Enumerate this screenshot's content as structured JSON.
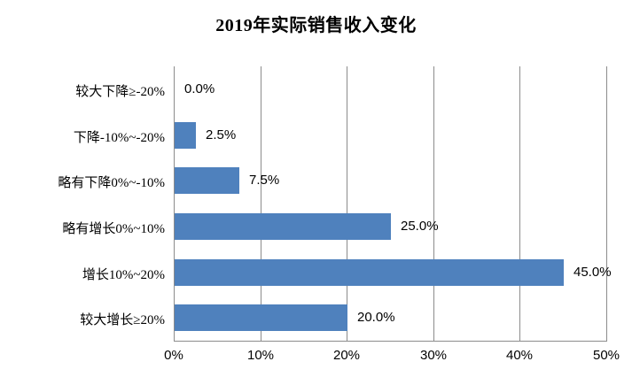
{
  "title": "2019年实际销售收入变化",
  "chart_data": {
    "type": "bar",
    "orientation": "horizontal",
    "title": "2019年实际销售收入变化",
    "categories": [
      "较大下降≥-20%",
      "下降-10%~-20%",
      "略有下降0%~-10%",
      "略有增长0%~10%",
      "增长10%~20%",
      "较大增长≥20%"
    ],
    "values": [
      0.0,
      2.5,
      7.5,
      25.0,
      45.0,
      20.0
    ],
    "data_labels": [
      "0.0%",
      "2.5%",
      "7.5%",
      "25.0%",
      "45.0%",
      "20.0%"
    ],
    "x_tick_labels": [
      "0%",
      "10%",
      "20%",
      "30%",
      "40%",
      "50%"
    ],
    "x_tick_values": [
      0,
      10,
      20,
      30,
      40,
      50
    ],
    "xlim": [
      0,
      50
    ],
    "xlabel": "",
    "ylabel": "",
    "grid": "vertical",
    "legend": false,
    "bar_color": "#4F81BD",
    "gridline_color": "#8C8C8C",
    "axis_line_color": "#8C8C8C",
    "text_color": "#000000",
    "background_color": "#FFFFFF"
  }
}
